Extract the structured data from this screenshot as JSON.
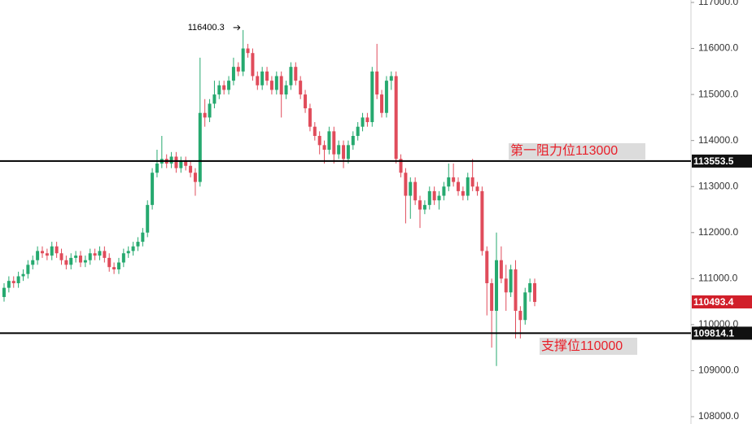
{
  "chart_data": {
    "type": "candlestick",
    "ylim": [
      108000,
      117000
    ],
    "yticks": [
      {
        "value": 108000,
        "label": "108000.0"
      },
      {
        "value": 109000,
        "label": "109000.0"
      },
      {
        "value": 110000,
        "label": "110000.0"
      },
      {
        "value": 111000,
        "label": "111000.0"
      },
      {
        "value": 112000,
        "label": "112000.0"
      },
      {
        "value": 113000,
        "label": "113000.0"
      },
      {
        "value": 114000,
        "label": "114000.0"
      },
      {
        "value": 115000,
        "label": "115000.0"
      },
      {
        "value": 116000,
        "label": "116000.0"
      },
      {
        "value": 117000,
        "label": "117000.0"
      }
    ],
    "up_color": "#26a96f",
    "down_color": "#e04c5b",
    "open": [
      110600,
      110800,
      110950,
      110900,
      111050,
      111100,
      111300,
      111400,
      111600,
      111550,
      111500,
      111700,
      111550,
      111400,
      111300,
      111450,
      111500,
      111350,
      111400,
      111550,
      111500,
      111600,
      111450,
      111250,
      111200,
      111350,
      111550,
      111600,
      111700,
      111800,
      112000,
      112600,
      113300,
      113500,
      113600,
      113500,
      113650,
      113400,
      113550,
      113450,
      113300,
      113100,
      114600,
      114500,
      114800,
      115000,
      115200,
      115100,
      115300,
      115600,
      115500,
      116000,
      115900,
      115400,
      115200,
      115500,
      115300,
      115100,
      115400,
      115000,
      115200,
      115600,
      115300,
      115000,
      114700,
      114300,
      114100,
      113900,
      113800,
      114200,
      113700,
      113900,
      113600,
      113900,
      114100,
      114300,
      114500,
      114400,
      115500,
      115000,
      114600,
      115300,
      115400,
      113600,
      113300,
      112800,
      113100,
      112700,
      112500,
      112600,
      112900,
      112700,
      112800,
      113000,
      113200,
      113100,
      112900,
      112800,
      113200,
      113000,
      112900,
      111600,
      110900,
      110300,
      111400,
      111000,
      110700,
      111200,
      110300,
      110100,
      110700,
      110900
    ],
    "high": [
      110900,
      111050,
      111050,
      111150,
      111200,
      111400,
      111500,
      111700,
      111700,
      111650,
      111800,
      111800,
      111650,
      111500,
      111550,
      111600,
      111600,
      111500,
      111650,
      111650,
      111700,
      111700,
      111550,
      111350,
      111450,
      111650,
      111700,
      111800,
      111900,
      112100,
      112700,
      113400,
      113800,
      114100,
      113700,
      113750,
      113750,
      113650,
      113650,
      113550,
      113400,
      115800,
      114900,
      114900,
      115300,
      115300,
      115300,
      115400,
      115800,
      115700,
      116400.3,
      116100,
      116000,
      115500,
      115600,
      115600,
      115400,
      115500,
      115500,
      115300,
      115700,
      115700,
      115400,
      115100,
      114800,
      114400,
      114200,
      114000,
      114300,
      114300,
      114000,
      114000,
      114000,
      114200,
      114400,
      114600,
      114600,
      115600,
      116100,
      115100,
      115400,
      115500,
      115500,
      113700,
      113400,
      113200,
      113200,
      112800,
      112700,
      113000,
      113000,
      112900,
      113100,
      113500,
      113500,
      113200,
      113000,
      113300,
      113600,
      113100,
      113000,
      111700,
      111000,
      112000,
      111700,
      111300,
      111300,
      111400,
      110400,
      110800,
      111000,
      111000
    ],
    "low": [
      110500,
      110700,
      110800,
      110800,
      110950,
      111000,
      111200,
      111300,
      111450,
      111400,
      111400,
      111450,
      111300,
      111200,
      111200,
      111350,
      111250,
      111250,
      111300,
      111400,
      111400,
      111350,
      111150,
      111100,
      111100,
      111250,
      111450,
      111500,
      111600,
      111700,
      111900,
      112500,
      113200,
      113400,
      113400,
      113400,
      113300,
      113300,
      113350,
      113200,
      112800,
      113000,
      114300,
      114400,
      114700,
      114900,
      115000,
      115000,
      115200,
      115400,
      115400,
      115800,
      115300,
      115100,
      115100,
      115200,
      115000,
      115000,
      114500,
      114900,
      115100,
      115200,
      114900,
      114600,
      114200,
      114000,
      113700,
      113500,
      113700,
      113500,
      113600,
      113400,
      113500,
      113800,
      114000,
      114200,
      114300,
      114300,
      114900,
      114500,
      114500,
      115100,
      113500,
      113200,
      112200,
      112300,
      112600,
      112100,
      112400,
      112500,
      112600,
      112500,
      112700,
      112900,
      113000,
      112800,
      112700,
      112700,
      112900,
      112800,
      111500,
      110200,
      109500,
      109100,
      110900,
      110300,
      110600,
      109700,
      109700,
      110000,
      110500,
      110400
    ],
    "close": [
      110800,
      110950,
      110900,
      111050,
      111100,
      111300,
      111400,
      111600,
      111550,
      111500,
      111700,
      111550,
      111400,
      111300,
      111450,
      111500,
      111350,
      111400,
      111550,
      111500,
      111600,
      111450,
      111250,
      111200,
      111350,
      111550,
      111600,
      111700,
      111800,
      112000,
      112600,
      113300,
      113500,
      113600,
      113500,
      113650,
      113400,
      113550,
      113450,
      113300,
      113100,
      114600,
      114500,
      114800,
      115000,
      115200,
      115100,
      115300,
      115600,
      115500,
      116000,
      115900,
      115400,
      115200,
      115500,
      115300,
      115100,
      115400,
      115000,
      115200,
      115600,
      115300,
      115000,
      114700,
      114300,
      114100,
      113900,
      113800,
      114200,
      113700,
      113900,
      113600,
      113900,
      114100,
      114300,
      114500,
      114400,
      115500,
      115000,
      114600,
      115300,
      115400,
      113600,
      113300,
      112800,
      113100,
      112700,
      112500,
      112600,
      112900,
      112700,
      112800,
      113000,
      113200,
      113100,
      112900,
      112800,
      113200,
      113000,
      112900,
      111600,
      110900,
      110300,
      111400,
      111000,
      110700,
      111200,
      110300,
      110100,
      110700,
      110900,
      110493.4
    ],
    "hlines": [
      113553.5,
      109814.1
    ],
    "last_price": 110493.4,
    "peak_label": "116400.3",
    "annotations": [
      "第一阻力位113000",
      "支撑位110000"
    ]
  }
}
